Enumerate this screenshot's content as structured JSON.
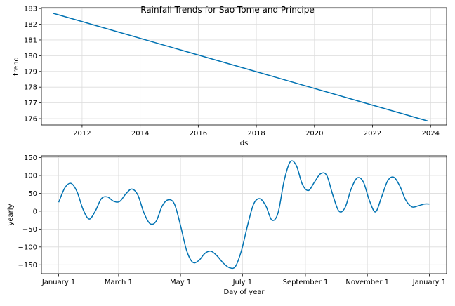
{
  "title": "Rainfall Trends for Sao Tome and Principe",
  "colors": {
    "line": "#0072B2",
    "grid": "#dcdcdc",
    "axis": "#000000"
  },
  "chart_data": [
    {
      "type": "line",
      "xlabel": "ds",
      "ylabel": "trend",
      "xlim": [
        2010.6,
        2024.55
      ],
      "ylim": [
        175.6,
        183.05
      ],
      "xticks": [
        2012,
        2014,
        2016,
        2018,
        2020,
        2022,
        2024
      ],
      "yticks": [
        176,
        177,
        178,
        179,
        180,
        181,
        182,
        183
      ],
      "grid": true,
      "series": [
        {
          "x": [
            2011.0,
            2023.9
          ],
          "y": [
            182.7,
            175.85
          ]
        }
      ]
    },
    {
      "type": "line",
      "xlabel": "Day of year",
      "ylabel": "yearly",
      "xlim": [
        -17,
        382
      ],
      "ylim": [
        -175,
        155
      ],
      "xticks": [
        {
          "value": 0,
          "label": "January 1"
        },
        {
          "value": 59,
          "label": "March 1"
        },
        {
          "value": 120,
          "label": "May 1"
        },
        {
          "value": 181,
          "label": "July 1"
        },
        {
          "value": 243,
          "label": "September 1"
        },
        {
          "value": 304,
          "label": "November 1"
        },
        {
          "value": 365,
          "label": "January 1"
        }
      ],
      "yticks": [
        -150,
        -100,
        -50,
        0,
        50,
        100,
        150
      ],
      "grid": true,
      "series": [
        {
          "x": [
            0,
            6,
            12,
            18,
            24,
            30,
            36,
            42,
            48,
            54,
            60,
            66,
            72,
            78,
            84,
            90,
            96,
            102,
            108,
            114,
            120,
            126,
            132,
            138,
            144,
            150,
            156,
            162,
            168,
            174,
            180,
            186,
            192,
            198,
            204,
            210,
            216,
            222,
            228,
            234,
            240,
            246,
            252,
            258,
            264,
            270,
            276,
            282,
            288,
            294,
            300,
            306,
            312,
            318,
            324,
            330,
            336,
            342,
            348,
            354,
            360,
            365
          ],
          "y": [
            25,
            65,
            78,
            55,
            5,
            -22,
            0,
            35,
            40,
            28,
            27,
            48,
            62,
            45,
            -5,
            -35,
            -28,
            15,
            32,
            20,
            -40,
            -110,
            -143,
            -138,
            -118,
            -112,
            -125,
            -145,
            -158,
            -155,
            -110,
            -40,
            20,
            35,
            15,
            -25,
            -5,
            85,
            138,
            128,
            75,
            58,
            82,
            105,
            100,
            45,
            0,
            10,
            62,
            93,
            82,
            30,
            10,
            18,
            20,
            20,
            20,
            20,
            20,
            20,
            20,
            20
          ]
        }
      ]
    }
  ]
}
